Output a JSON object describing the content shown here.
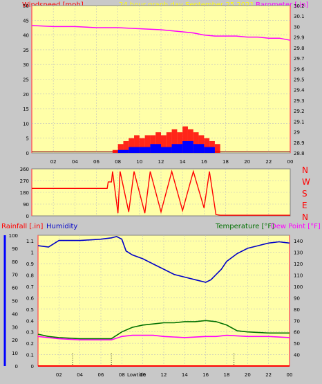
{
  "header": {
    "windspeed_label": "Windspeed [mph]",
    "title": "24 hour graph day   September 25 2021",
    "barometer_label": "Barometer [.in]"
  },
  "bottom_header": {
    "rainfall_label": "Rainfall [.in]",
    "humidity_label": "Humidity",
    "temperature_label": "Temperature [°F]",
    "dewpoint_label": "Dew Point [°F]"
  },
  "compass_labels": [
    "N",
    "W",
    "S",
    "E",
    "N"
  ],
  "lowtide_label": "Lowtide",
  "colors": {
    "windspeed": "#ff0000",
    "gust": "#ff0000",
    "wind_avg": "#0000ff",
    "barometer": "#ff00ff",
    "humidity": "#0000c8",
    "temperature": "#007000",
    "dewpoint": "#ff00ff",
    "rain": "#ff0000",
    "plot_background": "#ffffa8",
    "panel_background": "#c8c8c8"
  },
  "chart_data": [
    {
      "id": "wind",
      "type": "area",
      "x_unit": "hour",
      "x_ticks": [
        "02",
        "04",
        "06",
        "08",
        "10",
        "12",
        "14",
        "16",
        "18",
        "20",
        "22",
        "00"
      ],
      "ylim_left": [
        0,
        50
      ],
      "yticks_left": [
        "0",
        "5",
        "10",
        "15",
        "20",
        "25",
        "30",
        "35",
        "40",
        "45",
        "50"
      ],
      "ylim_right": [
        28.8,
        30.2
      ],
      "yticks_right": [
        "28.8",
        "28.9",
        "29",
        "29.1",
        "29.2",
        "29.3",
        "29.4",
        "29.5",
        "29.6",
        "29.7",
        "29.8",
        "29.9",
        "30",
        "30.1",
        "30.2"
      ],
      "series": [
        {
          "name": "Barometer",
          "axis": "right",
          "x": [
            0,
            2,
            4,
            6,
            8,
            10,
            12,
            13,
            14,
            15,
            16,
            17,
            18,
            19,
            20,
            21,
            22,
            23,
            24
          ],
          "values": [
            30.01,
            30.0,
            30.0,
            29.99,
            29.99,
            29.98,
            29.97,
            29.96,
            29.95,
            29.94,
            29.92,
            29.91,
            29.91,
            29.91,
            29.9,
            29.9,
            29.89,
            29.89,
            29.87
          ]
        },
        {
          "name": "Windspeed",
          "axis": "left",
          "x": [
            7.5,
            8,
            8.5,
            9,
            9.5,
            10,
            10.5,
            11,
            11.5,
            12,
            12.5,
            13,
            13.5,
            14,
            14.5,
            15,
            15.5,
            16,
            16.5,
            17,
            17.5
          ],
          "values": [
            1,
            3,
            4,
            5,
            6,
            5,
            6,
            6,
            7,
            6,
            7,
            8,
            7,
            9,
            8,
            7,
            6,
            5,
            4,
            3,
            1
          ]
        },
        {
          "name": "Wind average",
          "axis": "left",
          "x": [
            8,
            9,
            10,
            11,
            12,
            13,
            14,
            15,
            16,
            17
          ],
          "values": [
            1,
            2,
            2,
            3,
            2,
            3,
            4,
            3,
            2,
            1
          ]
        }
      ]
    },
    {
      "id": "direction",
      "type": "line",
      "ylim": [
        0,
        360
      ],
      "yticks": [
        "0",
        "90",
        "180",
        "270",
        "360"
      ],
      "series": [
        {
          "name": "Wind direction",
          "x": [
            0,
            7.0,
            7.1,
            7.4,
            7.5,
            8.0,
            8.2,
            9.0,
            9.5,
            10.5,
            11.0,
            12.0,
            13.0,
            14.0,
            15.0,
            16.0,
            16.5,
            17.1,
            17.5,
            18.0,
            24
          ],
          "values": [
            210,
            210,
            260,
            260,
            340,
            20,
            340,
            30,
            340,
            20,
            340,
            30,
            340,
            40,
            340,
            60,
            340,
            10,
            5,
            5,
            5
          ]
        }
      ]
    },
    {
      "id": "weather",
      "type": "line",
      "ylim_left_humidity": [
        0,
        100
      ],
      "yticks_humidity": [
        "0",
        "10",
        "20",
        "30",
        "40",
        "50",
        "60",
        "70",
        "80",
        "90",
        "100"
      ],
      "yticks_rain": [
        "0",
        "0.1",
        "0.2",
        "0.3",
        "0.4",
        "0.5",
        "0.6",
        "0.7",
        "0.8",
        "0.9",
        "1",
        "1.1"
      ],
      "ylim_right": [
        30,
        145
      ],
      "yticks_right": [
        "40",
        "50",
        "60",
        "70",
        "80",
        "90",
        "100",
        "110",
        "120",
        "130",
        "140"
      ],
      "x_ticks": [
        "02",
        "04",
        "06",
        "08",
        "10",
        "12",
        "14",
        "16",
        "18",
        "20",
        "22",
        "00"
      ],
      "series": [
        {
          "name": "Humidity",
          "axis": "left",
          "x": [
            0,
            1,
            2,
            4,
            6,
            7,
            7.5,
            8,
            8.4,
            9,
            10,
            11,
            12,
            13,
            14,
            15,
            16,
            16.5,
            17,
            17.5,
            18,
            19,
            20,
            21,
            22,
            23,
            24
          ],
          "values": [
            92,
            91,
            96,
            96,
            97,
            98,
            99,
            97,
            88,
            85,
            82,
            78,
            74,
            70,
            68,
            66,
            64,
            66,
            70,
            74,
            80,
            86,
            90,
            92,
            94,
            95,
            94
          ]
        },
        {
          "name": "Temperature",
          "axis": "right",
          "x": [
            0,
            1,
            2,
            4,
            6,
            7,
            8,
            9,
            10,
            11,
            12,
            13,
            14,
            15,
            16,
            17,
            18,
            19,
            20,
            22,
            24
          ],
          "values": [
            58,
            56,
            55,
            54,
            54,
            54,
            60,
            64,
            66,
            67,
            68,
            68,
            69,
            69,
            70,
            69,
            66,
            61,
            60,
            59,
            59
          ]
        },
        {
          "name": "Dew Point",
          "axis": "right",
          "x": [
            0,
            1,
            2,
            4,
            6,
            7,
            8,
            9,
            10,
            11,
            12,
            14,
            16,
            17,
            18,
            20,
            22,
            24
          ],
          "values": [
            56,
            55,
            54,
            53,
            53,
            53,
            56,
            57,
            57,
            57,
            56,
            55,
            56,
            56,
            57,
            56,
            56,
            55
          ]
        },
        {
          "name": "Rainfall",
          "axis": "left",
          "x": [
            0,
            24
          ],
          "values": [
            0,
            0
          ]
        }
      ],
      "tide_markers_hour": [
        3.3,
        7.0,
        18.7
      ]
    }
  ]
}
